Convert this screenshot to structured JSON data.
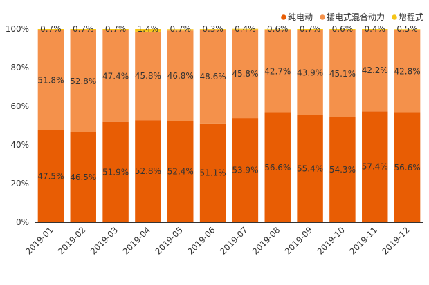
{
  "chart_data": {
    "type": "bar",
    "stacked": true,
    "percent": true,
    "categories": [
      "2019-01",
      "2019-02",
      "2019-03",
      "2019-04",
      "2019-05",
      "2019-06",
      "2019-07",
      "2019-08",
      "2019-09",
      "2019-10",
      "2019-11",
      "2019-12"
    ],
    "series": [
      {
        "name": "纯电动",
        "color": "#e85d04",
        "values": [
          47.5,
          46.5,
          51.9,
          52.8,
          52.4,
          51.1,
          53.9,
          56.6,
          55.4,
          54.3,
          57.4,
          56.6
        ],
        "labels": [
          "47.5%",
          "46.5%",
          "51.9%",
          "52.8%",
          "52.4%",
          "51.1%",
          "53.9%",
          "56.6%",
          "55.4%",
          "54.3%",
          "57.4%",
          "56.6%"
        ]
      },
      {
        "name": "插电式混合动力",
        "color": "#f4914b",
        "values": [
          51.8,
          52.8,
          47.4,
          45.8,
          46.8,
          48.6,
          45.8,
          42.7,
          43.9,
          45.1,
          42.2,
          42.8
        ],
        "labels": [
          "51.8%",
          "52.8%",
          "47.4%",
          "45.8%",
          "46.8%",
          "48.6%",
          "45.8%",
          "42.7%",
          "43.9%",
          "45.1%",
          "42.2%",
          "42.8%"
        ]
      },
      {
        "name": "增程式",
        "color": "#f5c518",
        "values": [
          0.7,
          0.7,
          0.7,
          1.4,
          0.7,
          0.3,
          0.4,
          0.6,
          0.7,
          0.6,
          0.4,
          0.5
        ],
        "labels": [
          "0.7%",
          "0.7%",
          "0.7%",
          "1.4%",
          "0.7%",
          "0.3%",
          "0.4%",
          "0.6%",
          "0.7%",
          "0.6%",
          "0.4%",
          "0.5%"
        ]
      }
    ],
    "ylim": [
      0,
      100
    ],
    "yticks": [
      "0%",
      "20%",
      "40%",
      "60%",
      "80%",
      "100%"
    ],
    "legend_position": "top-right",
    "grid": false,
    "title": "",
    "xlabel": "",
    "ylabel": ""
  }
}
